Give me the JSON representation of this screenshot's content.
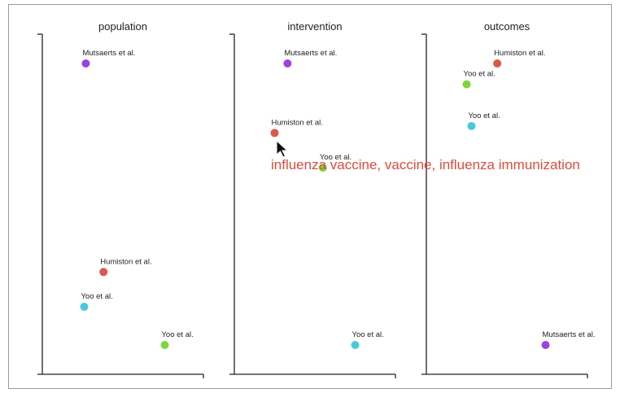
{
  "chart_data": [
    {
      "type": "scatter",
      "title": "population",
      "points": [
        {
          "label": "Mutsaerts et al.",
          "x": 0.27,
          "y": 0.9,
          "color": "#9b42e0"
        },
        {
          "label": "Humiston et al.",
          "x": 0.38,
          "y": 0.3,
          "color": "#d9594a"
        },
        {
          "label": "Yoo et al.",
          "x": 0.26,
          "y": 0.2,
          "color": "#4cc8de"
        },
        {
          "label": "Yoo et al.",
          "x": 0.76,
          "y": 0.09,
          "color": "#7fd63c"
        }
      ]
    },
    {
      "type": "scatter",
      "title": "intervention",
      "points": [
        {
          "label": "Mutsaerts et al.",
          "x": 0.33,
          "y": 0.9,
          "color": "#9b42e0"
        },
        {
          "label": "Humiston et al.",
          "x": 0.25,
          "y": 0.7,
          "color": "#d9594a"
        },
        {
          "label": "Yoo et al.",
          "x": 0.55,
          "y": 0.6,
          "color": "#7fd63c"
        },
        {
          "label": "Yoo et al.",
          "x": 0.75,
          "y": 0.09,
          "color": "#4cc8de"
        }
      ]
    },
    {
      "type": "scatter",
      "title": "outcomes",
      "points": [
        {
          "label": "Humiston et al.",
          "x": 0.44,
          "y": 0.9,
          "color": "#d9594a"
        },
        {
          "label": "Yoo et al.",
          "x": 0.25,
          "y": 0.84,
          "color": "#7fd63c"
        },
        {
          "label": "Yoo et al.",
          "x": 0.28,
          "y": 0.72,
          "color": "#4cc8de"
        },
        {
          "label": "Mutsaerts et al.",
          "x": 0.74,
          "y": 0.09,
          "color": "#9b42e0"
        }
      ]
    }
  ],
  "tooltip": {
    "text": "influenza vaccine, vaccine, influenza immunization",
    "color": "#e04b3a"
  }
}
